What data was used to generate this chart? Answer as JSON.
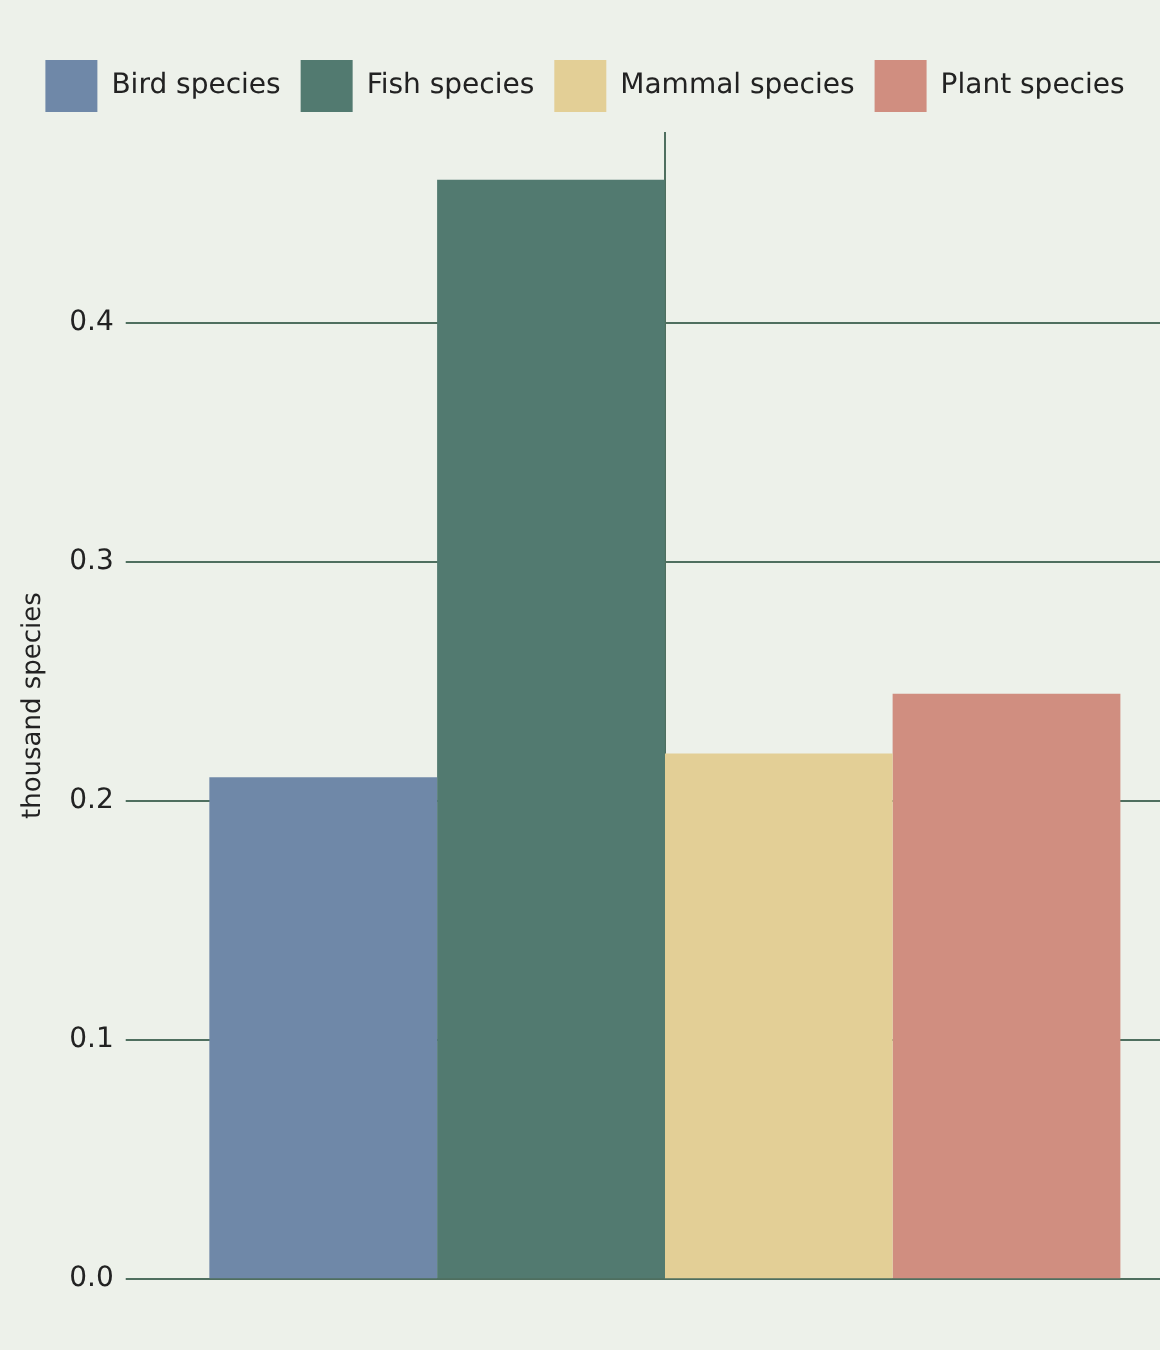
{
  "chart_data": {
    "type": "bar",
    "ylabel": "thousand species",
    "categories": [
      null
    ],
    "series": [
      {
        "name": "Bird species",
        "color": "#6f88a8",
        "values": [
          0.21
        ]
      },
      {
        "name": "Fish species",
        "color": "#527a70",
        "values": [
          0.46
        ]
      },
      {
        "name": "Mammal species",
        "color": "#e3cf96",
        "values": [
          0.22
        ]
      },
      {
        "name": "Plant species",
        "color": "#d08e80",
        "values": [
          0.245
        ]
      }
    ],
    "ylim": [
      0,
      0.48
    ],
    "yticks": [
      {
        "value": 0,
        "label": "0.0"
      },
      0.1,
      0.2,
      0.3,
      0.4
    ],
    "grid": true,
    "legend": "top"
  }
}
